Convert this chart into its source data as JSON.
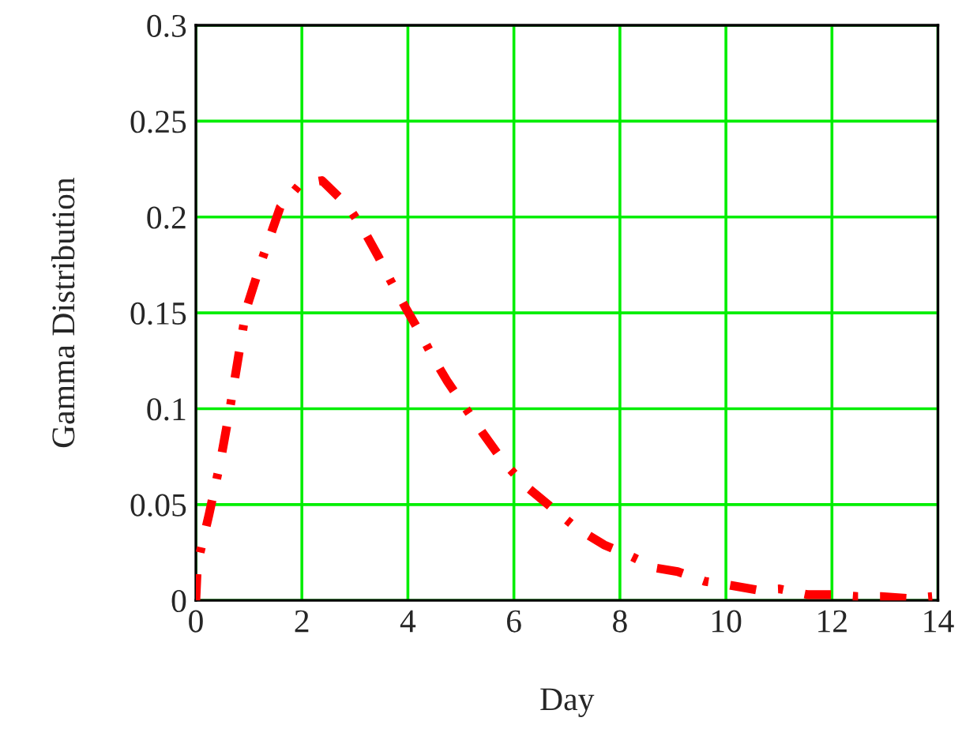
{
  "chart_data": {
    "type": "line",
    "xlabel": "Day",
    "ylabel": "Gamma Distribution",
    "x": [
      0,
      0.03,
      0.25,
      0.46,
      0.63,
      0.79,
      0.95,
      1.25,
      1.59,
      1.96,
      2.38,
      2.86,
      3.17,
      3.45,
      3.67,
      3.95,
      4.22,
      4.49,
      4.75,
      5.12,
      5.42,
      5.81,
      6.21,
      6.73,
      7.17,
      7.7,
      8.14,
      8.66,
      9.09,
      9.6,
      10.06,
      10.57,
      11.01,
      11.54,
      11.99,
      12.48,
      12.93,
      13.47,
      13.89
    ],
    "series": [
      {
        "color": "#ff0000",
        "values": [
          0.0,
          0.019,
          0.045,
          0.072,
          0.098,
          0.125,
          0.152,
          0.178,
          0.205,
          0.217,
          0.219,
          0.206,
          0.193,
          0.179,
          0.167,
          0.153,
          0.14,
          0.126,
          0.114,
          0.099,
          0.087,
          0.072,
          0.06,
          0.048,
          0.038,
          0.029,
          0.024,
          0.017,
          0.015,
          0.01,
          0.008,
          0.0055,
          0.006,
          0.003,
          0.003,
          0.002,
          0.002,
          0.001,
          0.002
        ]
      }
    ],
    "xlim": [
      0,
      14
    ],
    "xticks": [
      0,
      2,
      4,
      6,
      8,
      10,
      12,
      14
    ],
    "ylim": [
      0,
      0.3
    ],
    "yticks": [
      0,
      0.05,
      0.1,
      0.15,
      0.2,
      0.25,
      0.3
    ],
    "grid": true,
    "marker": "none",
    "line_style": "dashdot"
  }
}
